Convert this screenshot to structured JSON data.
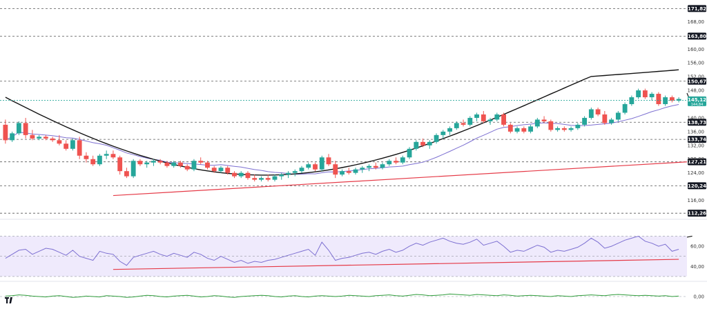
{
  "chart_data": [
    {
      "type": "candlestick",
      "title": "",
      "ylim": [
        113.5,
        173.5
      ],
      "tick_labels": [
        "168,00",
        "160,00",
        "156,00",
        "152,00",
        "148,00",
        "140,00",
        "136,00",
        "132,00",
        "128,00",
        "124,00",
        "116,00"
      ],
      "tick_values": [
        168,
        160,
        156,
        152,
        148,
        140,
        136,
        132,
        128,
        124,
        116
      ],
      "level_lines": [
        171.82,
        163.8,
        150.67,
        138.73,
        133.74,
        127.21,
        120.24,
        112.26
      ],
      "level_labels": [
        "171,82",
        "163,80",
        "150,67",
        "138,73",
        "133,74",
        "127,21",
        "120,24",
        "112,26"
      ],
      "current_price": 145.12,
      "current_price_label": "145,12",
      "current_price_sublabel": "144,84",
      "trendlines": [
        {
          "color": "#e53946",
          "from": [
            16,
            117.4
          ],
          "to": [
            115,
            127.2
          ]
        },
        {
          "color": "#111111",
          "from": [
            102,
            143.5
          ],
          "to": [
            109,
            147.2
          ]
        }
      ],
      "sma_long_color": "#111111",
      "sma_short_color": "#7c6fd1",
      "up_color": "#26a69a",
      "down_color": "#ef5350",
      "candles": [
        [
          138.0,
          139.5,
          132.5,
          133.5
        ],
        [
          133.5,
          136.0,
          133.0,
          135.5
        ],
        [
          135.5,
          139.0,
          135.0,
          138.5
        ],
        [
          138.5,
          140.0,
          134.0,
          135.0
        ],
        [
          135.0,
          136.5,
          133.5,
          134.0
        ],
        [
          134.0,
          135.0,
          133.5,
          134.5
        ],
        [
          134.5,
          135.0,
          133.5,
          134.0
        ],
        [
          134.0,
          134.5,
          133.0,
          133.5
        ],
        [
          133.5,
          135.0,
          132.0,
          132.5
        ],
        [
          132.5,
          133.5,
          130.5,
          131.0
        ],
        [
          131.0,
          134.0,
          130.5,
          133.5
        ],
        [
          133.5,
          134.5,
          128.0,
          129.0
        ],
        [
          129.0,
          130.0,
          127.0,
          128.0
        ],
        [
          128.0,
          129.0,
          126.0,
          126.5
        ],
        [
          126.5,
          129.5,
          126.0,
          129.0
        ],
        [
          129.0,
          130.5,
          128.0,
          129.5
        ],
        [
          129.5,
          130.5,
          128.0,
          128.5
        ],
        [
          128.5,
          129.0,
          123.5,
          124.5
        ],
        [
          124.5,
          125.5,
          122.5,
          123.0
        ],
        [
          123.0,
          128.0,
          122.5,
          127.5
        ],
        [
          127.5,
          128.0,
          126.0,
          126.5
        ],
        [
          126.5,
          127.5,
          125.5,
          127.0
        ],
        [
          127.0,
          128.0,
          126.0,
          127.5
        ],
        [
          127.5,
          128.0,
          126.5,
          127.0
        ],
        [
          127.0,
          127.5,
          125.5,
          126.0
        ],
        [
          126.0,
          127.5,
          125.5,
          127.0
        ],
        [
          127.0,
          127.5,
          125.5,
          126.0
        ],
        [
          126.0,
          126.5,
          124.5,
          125.0
        ],
        [
          125.0,
          128.0,
          124.5,
          127.5
        ],
        [
          127.5,
          128.5,
          126.5,
          127.0
        ],
        [
          127.0,
          127.5,
          125.0,
          125.5
        ],
        [
          125.5,
          126.0,
          124.0,
          124.5
        ],
        [
          124.5,
          126.0,
          124.0,
          125.5
        ],
        [
          125.5,
          126.0,
          123.5,
          124.0
        ],
        [
          124.0,
          124.5,
          122.5,
          123.0
        ],
        [
          123.0,
          124.5,
          122.5,
          124.0
        ],
        [
          124.0,
          124.5,
          122.0,
          122.5
        ],
        [
          122.5,
          123.5,
          121.5,
          122.0
        ],
        [
          122.0,
          123.0,
          121.5,
          122.5
        ],
        [
          122.5,
          123.5,
          121.5,
          122.0
        ],
        [
          122.0,
          123.5,
          121.5,
          123.0
        ],
        [
          123.0,
          124.0,
          122.0,
          123.5
        ],
        [
          123.5,
          124.5,
          122.5,
          124.0
        ],
        [
          124.0,
          125.0,
          123.0,
          124.5
        ],
        [
          124.5,
          126.0,
          124.0,
          125.5
        ],
        [
          125.5,
          127.0,
          125.0,
          126.5
        ],
        [
          126.5,
          127.0,
          124.5,
          125.0
        ],
        [
          125.0,
          129.0,
          124.5,
          128.5
        ],
        [
          128.5,
          129.5,
          126.0,
          126.5
        ],
        [
          126.5,
          127.5,
          122.5,
          123.5
        ],
        [
          123.5,
          125.0,
          123.0,
          124.5
        ],
        [
          124.5,
          125.5,
          123.5,
          124.0
        ],
        [
          124.0,
          125.5,
          123.5,
          125.0
        ],
        [
          125.0,
          126.0,
          124.0,
          125.5
        ],
        [
          125.5,
          126.5,
          124.5,
          126.0
        ],
        [
          126.0,
          127.0,
          125.0,
          125.5
        ],
        [
          125.5,
          127.0,
          125.0,
          126.5
        ],
        [
          126.5,
          128.0,
          126.0,
          127.5
        ],
        [
          127.5,
          128.5,
          126.5,
          127.0
        ],
        [
          127.0,
          129.0,
          126.5,
          128.5
        ],
        [
          128.5,
          131.5,
          128.0,
          131.0
        ],
        [
          131.0,
          133.5,
          130.5,
          133.0
        ],
        [
          133.0,
          134.0,
          131.5,
          132.0
        ],
        [
          132.0,
          133.5,
          131.0,
          133.0
        ],
        [
          133.0,
          135.5,
          132.5,
          135.0
        ],
        [
          135.0,
          136.5,
          134.0,
          136.0
        ],
        [
          136.0,
          137.5,
          135.0,
          137.0
        ],
        [
          137.0,
          139.0,
          136.5,
          138.5
        ],
        [
          138.5,
          139.5,
          137.5,
          138.0
        ],
        [
          138.0,
          140.5,
          137.5,
          140.0
        ],
        [
          140.0,
          141.5,
          139.0,
          141.0
        ],
        [
          141.0,
          142.0,
          138.5,
          139.0
        ],
        [
          139.0,
          140.0,
          138.0,
          139.5
        ],
        [
          139.5,
          141.5,
          139.0,
          141.0
        ],
        [
          141.0,
          141.5,
          137.5,
          138.0
        ],
        [
          138.0,
          138.5,
          135.5,
          136.0
        ],
        [
          136.0,
          137.5,
          135.5,
          137.0
        ],
        [
          137.0,
          137.5,
          135.5,
          136.0
        ],
        [
          136.0,
          138.0,
          135.5,
          137.5
        ],
        [
          137.5,
          140.0,
          137.0,
          139.5
        ],
        [
          139.5,
          140.5,
          138.5,
          139.0
        ],
        [
          139.0,
          139.5,
          136.0,
          136.5
        ],
        [
          136.5,
          137.5,
          136.0,
          137.0
        ],
        [
          137.0,
          137.5,
          136.0,
          136.5
        ],
        [
          136.5,
          137.5,
          136.0,
          137.0
        ],
        [
          137.0,
          138.5,
          136.5,
          138.0
        ],
        [
          138.0,
          140.5,
          137.5,
          140.0
        ],
        [
          140.0,
          143.0,
          139.5,
          142.5
        ],
        [
          142.5,
          143.0,
          140.5,
          141.0
        ],
        [
          141.0,
          142.0,
          138.0,
          138.5
        ],
        [
          138.5,
          140.0,
          138.0,
          139.5
        ],
        [
          139.5,
          142.0,
          139.0,
          141.5
        ],
        [
          141.5,
          144.5,
          141.0,
          144.0
        ],
        [
          144.0,
          146.5,
          143.5,
          146.0
        ],
        [
          146.0,
          148.5,
          145.5,
          148.0
        ],
        [
          148.0,
          148.5,
          145.5,
          146.0
        ],
        [
          146.0,
          147.5,
          145.0,
          147.0
        ],
        [
          147.0,
          147.5,
          143.5,
          144.0
        ],
        [
          144.0,
          146.5,
          143.5,
          146.0
        ],
        [
          146.0,
          146.5,
          144.5,
          145.0
        ],
        [
          145.0,
          146.0,
          144.5,
          145.5
        ]
      ]
    },
    {
      "type": "line",
      "name": "RSI",
      "ylim": [
        32,
        84
      ],
      "tick_labels": [
        "60,00",
        "40,00"
      ],
      "tick_values": [
        60,
        40
      ],
      "band": [
        70,
        30
      ],
      "values": [
        48,
        52,
        56,
        57,
        52,
        55,
        58,
        57,
        54,
        51,
        56,
        50,
        48,
        46,
        55,
        53,
        52,
        45,
        41,
        49,
        51,
        53,
        55,
        52,
        50,
        53,
        51,
        49,
        54,
        52,
        48,
        46,
        50,
        47,
        44,
        46,
        43,
        45,
        44,
        46,
        47,
        49,
        51,
        53,
        55,
        57,
        51,
        64,
        56,
        46,
        48,
        49,
        51,
        53,
        54,
        52,
        55,
        57,
        54,
        56,
        60,
        63,
        61,
        64,
        66,
        68,
        65,
        63,
        62,
        64,
        67,
        61,
        63,
        65,
        60,
        54,
        56,
        55,
        58,
        61,
        59,
        54,
        56,
        55,
        57,
        59,
        63,
        68,
        64,
        58,
        60,
        63,
        66,
        68,
        70,
        65,
        63,
        60,
        62,
        55,
        57
      ],
      "trendlines": [
        {
          "color": "#e53946",
          "from": [
            16,
            37
          ],
          "to": [
            100,
            47
          ]
        },
        {
          "color": "#111111",
          "from": [
            102,
            70
          ],
          "to": [
            114,
            69
          ]
        }
      ],
      "line_color": "#7c6fd1"
    },
    {
      "type": "line",
      "name": "Momentum",
      "ylim": [
        -3,
        3
      ],
      "tick_labels": [
        "0,00"
      ],
      "tick_values": [
        0
      ],
      "values": [
        0.1,
        0.2,
        0.4,
        0.3,
        0.1,
        0.0,
        -0.1,
        0.1,
        0.2,
        0.0,
        -0.2,
        -0.1,
        0.1,
        0.0,
        -0.1,
        0.2,
        0.1,
        0.0,
        -0.2,
        -0.1,
        0.1,
        0.3,
        0.2,
        0.0,
        -0.1,
        0.1,
        0.2,
        0.3,
        0.1,
        -0.1,
        0.0,
        0.2,
        0.1,
        -0.1,
        -0.2,
        0.0,
        0.1,
        0.2,
        0.3,
        0.2,
        0.0,
        -0.1,
        0.1,
        0.2,
        0.0,
        -0.1,
        0.1,
        0.2,
        0.1,
        0.0,
        0.1,
        0.3,
        0.2,
        0.1,
        0.0,
        0.2,
        0.3,
        0.4,
        0.2,
        0.1,
        0.3,
        0.5,
        0.4,
        0.2,
        0.3,
        0.4,
        0.6,
        0.5,
        0.4,
        0.3,
        0.5,
        0.4,
        0.3,
        0.2,
        0.4,
        0.3,
        0.1,
        0.2,
        0.3,
        0.2,
        0.1,
        0.0,
        0.2,
        0.1,
        0.0,
        0.2,
        0.3,
        0.4,
        0.3,
        0.2,
        0.4,
        0.5,
        0.4,
        0.3,
        0.2,
        0.3,
        0.2,
        0.1,
        0.2,
        0.0,
        0.1
      ],
      "line_color": "#2e9c3a"
    }
  ],
  "colors": {
    "level_box": "#131722",
    "price_box": "#26a69a",
    "grid_dash": "#555555",
    "rsi_band": "#efeafc"
  },
  "branding": {
    "logo_icon": "tradingview-logo-icon"
  }
}
